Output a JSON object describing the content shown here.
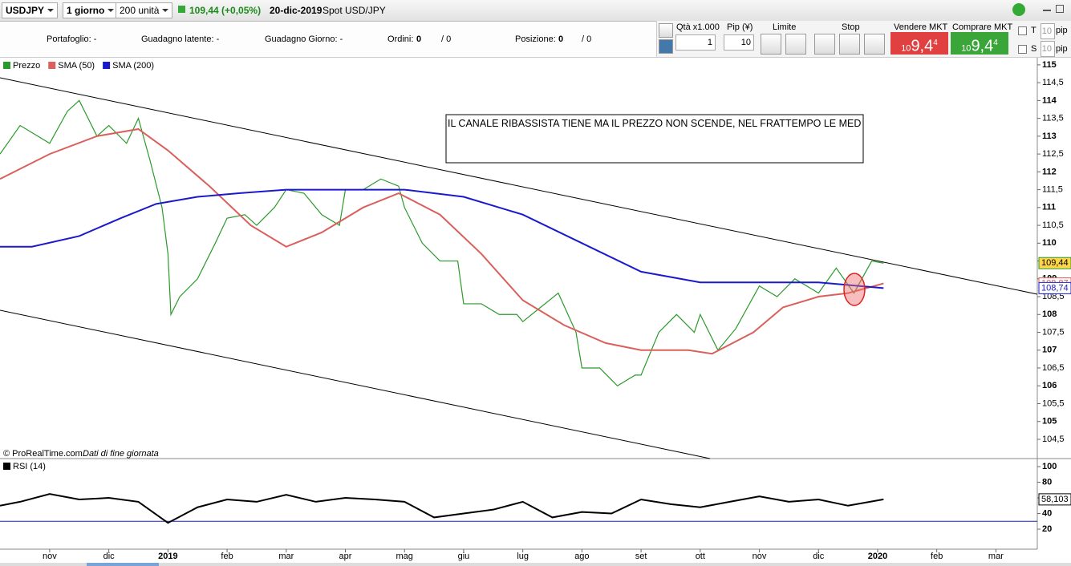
{
  "toolbar": {
    "symbol": "USDJPY",
    "period": "1 giorno",
    "units": "200 unità",
    "price_change": "109,44 (+0,05%)",
    "date": "20-dic-2019",
    "instrument": "Spot USD/JPY"
  },
  "account": {
    "portfolio": "Portafoglio: -",
    "unrealized": "Guadagno latente: -",
    "daily_gain": "Guadagno Giorno: -",
    "orders": "Ordini:",
    "orders_count": "0",
    "orders_total": "/ 0",
    "position": "Posizione:",
    "position_count": "0",
    "position_total": "/ 0"
  },
  "trade_panel": {
    "qty_label": "Qtà x1.000",
    "pip_label": "Pip (¥)",
    "qty": "1",
    "pip": "10",
    "limit": "Limite",
    "stop": "Stop",
    "sell": "Vendere MKT",
    "buy": "Comprare MKT",
    "sell_big": "10",
    "sell_price": "9,4",
    "sell_small": "4",
    "buy_big": "10",
    "buy_price": "9,4",
    "buy_small": "4",
    "t_label": "T",
    "s_label": "S",
    "t_pips": "10",
    "s_pips": "10",
    "pip_unit_t": "pip",
    "pip_unit_s": "pip"
  },
  "chart_data": [
    {
      "type": "line",
      "annotation": "IL CANALE RIBASSISTA TIENE MA IL PREZZO NON SCENDE, NEL FRATTEMPO LE MEDIE MOBILI VANNO IN GOLDEN CROSS E SU EVENTUALE ROTTURA DEI 109.80 ANDREMO A VALUTARE IL LONG PER IL CAMBIO DI TREND.",
      "credit": "© ProRealTime.com",
      "credit_note": "Dati di fine giornata",
      "xlim": [
        -0.84,
        16.7
      ],
      "ylim": [
        103.96,
        115.2
      ],
      "yticks": [
        {
          "value": 104.5,
          "label": "104,5"
        },
        105,
        {
          "value": 105.5,
          "label": "105,5"
        },
        106,
        {
          "value": 106.5,
          "label": "106,5"
        },
        107,
        {
          "value": 107.5,
          "label": "107,5"
        },
        108,
        {
          "value": 108.5,
          "label": "108,5"
        },
        109,
        {
          "value": 109.5,
          "label": "109,5"
        },
        110,
        {
          "value": 110.5,
          "label": "110,5"
        },
        111,
        {
          "value": 111.5,
          "label": "111,5"
        },
        112,
        {
          "value": 112.5,
          "label": "112,5"
        },
        113,
        {
          "value": 113.5,
          "label": "113,5"
        },
        114,
        {
          "value": 114.5,
          "label": "114,5"
        },
        115
      ],
      "series": [
        {
          "name": "Prezzo",
          "color": "#2a9a2a",
          "last": {
            "value": 109.44,
            "label": "109,44"
          },
          "x": [
            -0.84,
            -0.5,
            0,
            0.3,
            0.5,
            0.8,
            1,
            1.3,
            1.5,
            1.7,
            1.9,
            2,
            2.05,
            2.2,
            2.5,
            2.8,
            3,
            3.3,
            3.5,
            3.8,
            4,
            4.3,
            4.6,
            4.9,
            5,
            5.3,
            5.6,
            5.9,
            6,
            6.3,
            6.6,
            6.9,
            7,
            7.3,
            7.6,
            7.9,
            8,
            8.3,
            8.6,
            8.9,
            9,
            9.3,
            9.6,
            9.9,
            10,
            10.3,
            10.6,
            10.9,
            11,
            11.3,
            11.6,
            11.9,
            12,
            12.3,
            12.6,
            12.9,
            13,
            13.3,
            13.6,
            13.9,
            14.1
          ],
          "values": [
            112.5,
            113.3,
            112.8,
            113.7,
            114.0,
            113.0,
            113.3,
            112.8,
            113.5,
            112.3,
            111.0,
            109.7,
            108.0,
            108.5,
            109.0,
            110.0,
            110.7,
            110.8,
            110.5,
            111.0,
            111.5,
            111.4,
            110.8,
            110.5,
            111.5,
            111.5,
            111.8,
            111.6,
            111.0,
            110.0,
            109.5,
            109.5,
            108.3,
            108.3,
            108.0,
            108.0,
            107.8,
            108.2,
            108.6,
            107.5,
            106.5,
            106.5,
            106.0,
            106.3,
            106.3,
            107.5,
            108.0,
            107.5,
            108.0,
            107.0,
            107.6,
            108.5,
            108.8,
            108.5,
            109.0,
            108.7,
            108.6,
            109.3,
            108.6,
            109.5,
            109.44
          ]
        },
        {
          "name": "SMA (50)",
          "color": "#d9605c",
          "last": {
            "value": 108.87,
            "label": "108,87"
          },
          "x": [
            -0.84,
            0,
            0.8,
            1.5,
            2,
            2.7,
            3.4,
            4,
            4.6,
            5.3,
            5.9,
            6.6,
            7.3,
            8,
            8.7,
            9.4,
            10,
            10.8,
            11.2,
            11.9,
            12.4,
            13,
            13.5,
            14.1
          ],
          "values": [
            111.8,
            112.5,
            113.0,
            113.2,
            112.6,
            111.6,
            110.5,
            109.9,
            110.3,
            111.0,
            111.4,
            110.8,
            109.7,
            108.4,
            107.7,
            107.2,
            107.0,
            107.0,
            106.9,
            107.5,
            108.2,
            108.5,
            108.6,
            108.87
          ]
        },
        {
          "name": "SMA (200)",
          "color": "#1a1acc",
          "last": {
            "value": 108.74,
            "label": "108,74"
          },
          "x": [
            -0.84,
            -0.3,
            0.5,
            1.2,
            1.8,
            2.5,
            3.2,
            4,
            5,
            6,
            7,
            8,
            9,
            10,
            11,
            12,
            13,
            14.1
          ],
          "values": [
            109.9,
            109.9,
            110.2,
            110.7,
            111.1,
            111.3,
            111.4,
            111.5,
            111.5,
            111.5,
            111.3,
            110.8,
            110.0,
            109.2,
            108.9,
            108.9,
            108.9,
            108.74
          ]
        }
      ]
    },
    {
      "type": "line",
      "xlim": [
        -0.84,
        16.7
      ],
      "ylim": [
        -5.6,
        110.3
      ],
      "yticks": [
        20,
        40,
        60,
        80,
        100
      ],
      "reference_line": {
        "value": 30,
        "color": "#1a1acc"
      },
      "xticks": [
        {
          "value": 0,
          "label": "nov"
        },
        {
          "value": 1,
          "label": "dic"
        },
        {
          "value": 2,
          "label": "2019"
        },
        {
          "value": 3,
          "label": "feb"
        },
        {
          "value": 4,
          "label": "mar"
        },
        {
          "value": 5,
          "label": "apr"
        },
        {
          "value": 6,
          "label": "mag"
        },
        {
          "value": 7,
          "label": "giu"
        },
        {
          "value": 8,
          "label": "lug"
        },
        {
          "value": 9,
          "label": "ago"
        },
        {
          "value": 10,
          "label": "set"
        },
        {
          "value": 11,
          "label": "ott"
        },
        {
          "value": 12,
          "label": "nov"
        },
        {
          "value": 13,
          "label": "dic"
        },
        {
          "value": 14,
          "label": "2020"
        },
        {
          "value": 15,
          "label": "feb"
        },
        {
          "value": 16,
          "label": "mar"
        }
      ],
      "series": [
        {
          "name": "RSI (14)",
          "color": "#000000",
          "last": {
            "value": 58.103,
            "label": "58,103"
          },
          "x": [
            -0.84,
            -0.5,
            0,
            0.5,
            1,
            1.5,
            2,
            2.5,
            3,
            3.5,
            4,
            4.5,
            5,
            5.5,
            6,
            6.5,
            7,
            7.5,
            8,
            8.5,
            9,
            9.5,
            10,
            10.5,
            11,
            11.5,
            12,
            12.5,
            13,
            13.5,
            14.1
          ],
          "values": [
            50,
            55,
            65,
            58,
            60,
            55,
            28,
            48,
            58,
            55,
            64,
            55,
            60,
            58,
            55,
            35,
            40,
            45,
            55,
            35,
            42,
            40,
            58,
            52,
            48,
            55,
            62,
            55,
            58,
            50,
            58.103
          ]
        }
      ]
    }
  ]
}
